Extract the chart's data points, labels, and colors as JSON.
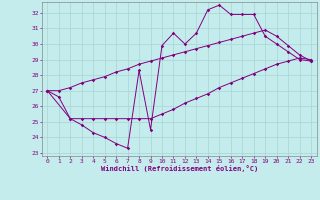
{
  "xlabel": "Windchill (Refroidissement éolien,°C)",
  "xlim": [
    -0.5,
    23.5
  ],
  "ylim": [
    22.8,
    32.7
  ],
  "yticks": [
    23,
    24,
    25,
    26,
    27,
    28,
    29,
    30,
    31,
    32
  ],
  "xticks": [
    0,
    1,
    2,
    3,
    4,
    5,
    6,
    7,
    8,
    9,
    10,
    11,
    12,
    13,
    14,
    15,
    16,
    17,
    18,
    19,
    20,
    21,
    22,
    23
  ],
  "bg_color": "#c5ecec",
  "grid_color": "#a8d4d4",
  "line_color": "#800080",
  "line1_x": [
    0,
    1,
    2,
    3,
    4,
    5,
    6,
    7,
    8,
    9,
    10,
    11,
    12,
    13,
    14,
    15,
    16,
    17,
    18,
    19,
    20,
    21,
    22,
    23
  ],
  "line1_y": [
    27.0,
    26.6,
    25.2,
    24.8,
    24.3,
    24.0,
    23.6,
    23.3,
    28.3,
    24.5,
    29.9,
    30.7,
    30.0,
    30.7,
    32.2,
    32.5,
    31.9,
    31.9,
    31.9,
    30.5,
    30.0,
    29.5,
    29.0,
    28.9
  ],
  "line2_x": [
    0,
    2,
    3,
    4,
    5,
    6,
    7,
    8,
    9,
    10,
    11,
    12,
    13,
    14,
    15,
    16,
    17,
    18,
    19,
    20,
    21,
    22,
    23
  ],
  "line2_y": [
    27.0,
    25.2,
    25.2,
    25.2,
    25.2,
    25.2,
    25.2,
    25.2,
    25.2,
    25.5,
    25.8,
    26.2,
    26.5,
    26.8,
    27.2,
    27.5,
    27.8,
    28.1,
    28.4,
    28.7,
    28.9,
    29.1,
    29.0
  ],
  "line3_x": [
    0,
    1,
    2,
    3,
    4,
    5,
    6,
    7,
    8,
    9,
    10,
    11,
    12,
    13,
    14,
    15,
    16,
    17,
    18,
    19,
    20,
    21,
    22,
    23
  ],
  "line3_y": [
    27.0,
    27.0,
    27.2,
    27.5,
    27.7,
    27.9,
    28.2,
    28.4,
    28.7,
    28.9,
    29.1,
    29.3,
    29.5,
    29.7,
    29.9,
    30.1,
    30.3,
    30.5,
    30.7,
    30.9,
    30.5,
    29.9,
    29.3,
    28.9
  ]
}
